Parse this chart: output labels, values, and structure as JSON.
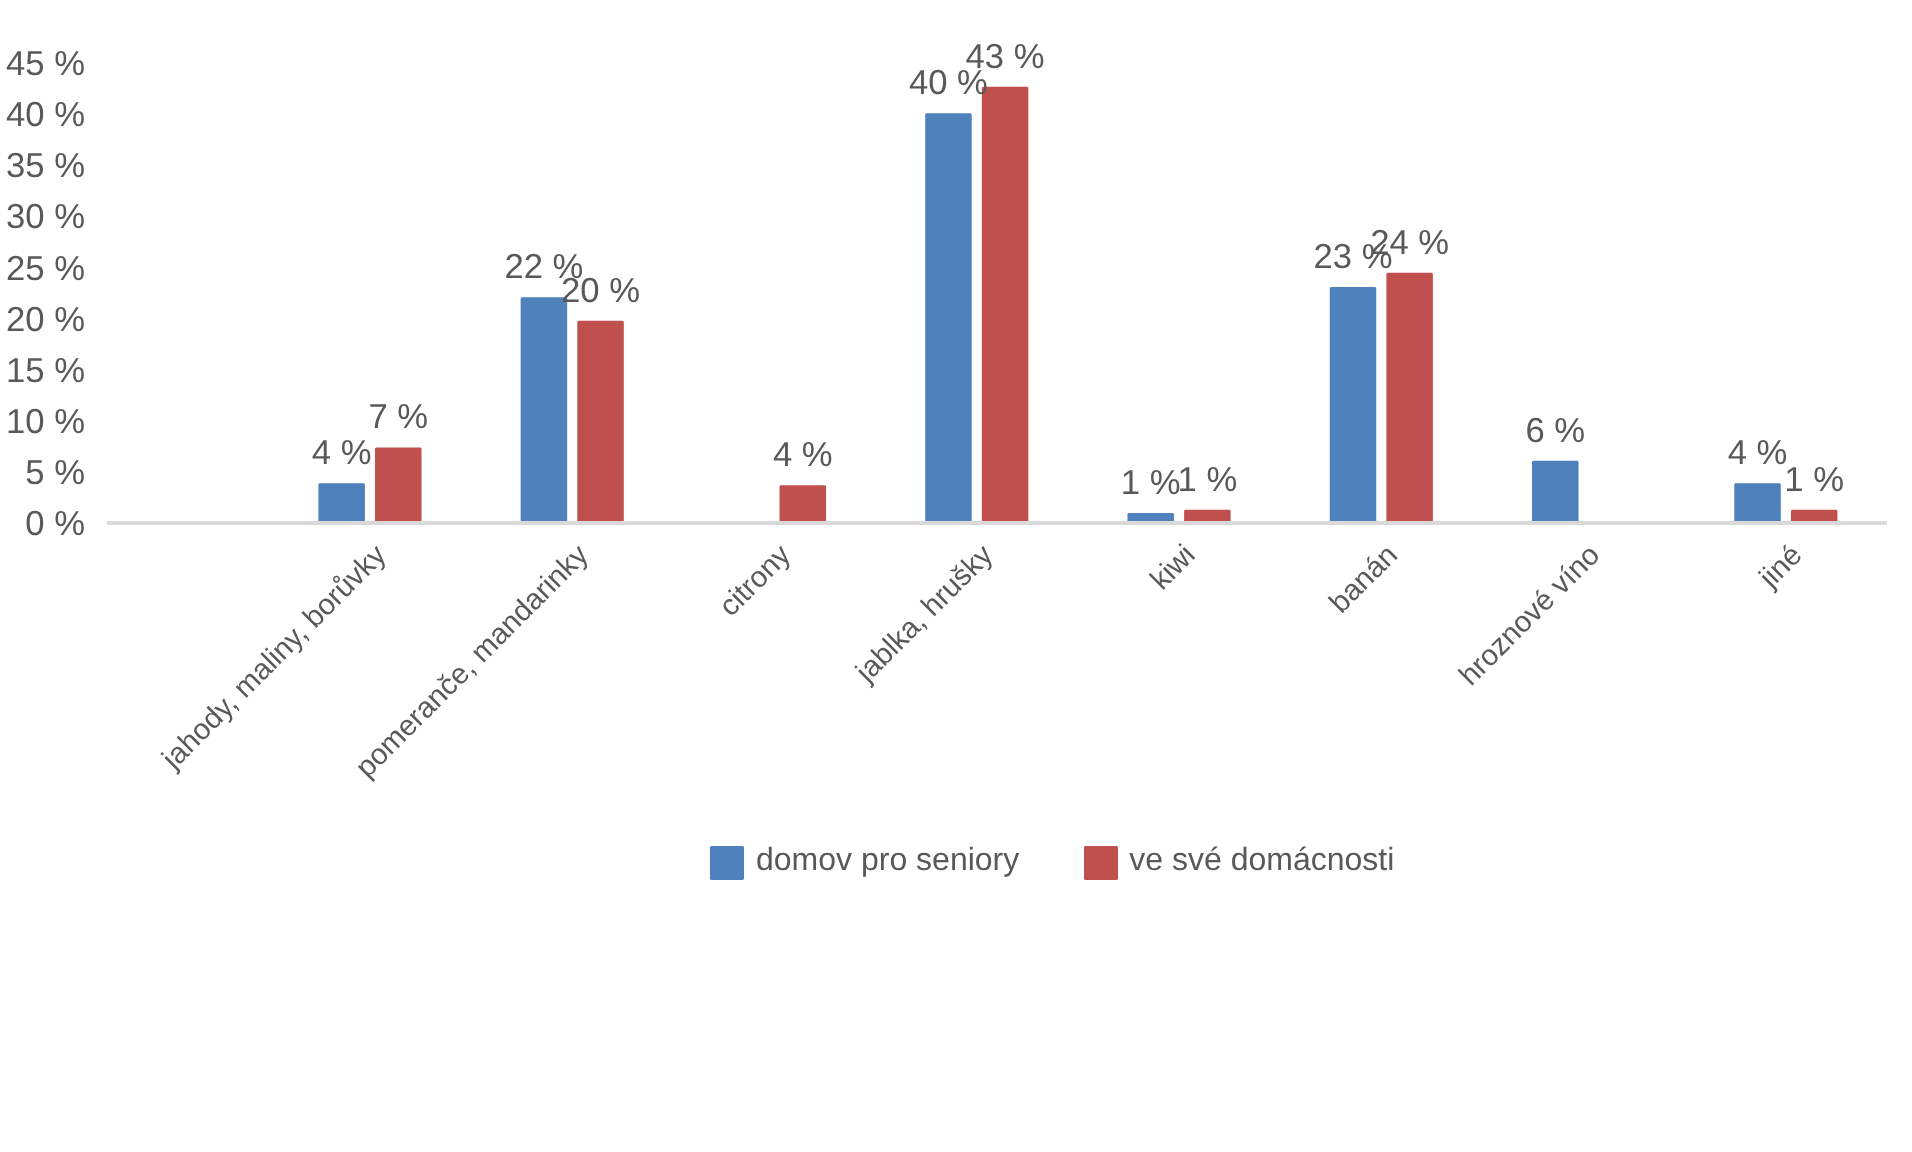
{
  "chart_data": {
    "type": "bar",
    "categories": [
      "jahody, maliny, borůvky",
      "pomeranče, mandarinky",
      "citrony",
      "jablka, hrušky",
      "kiwi",
      "banán",
      "hroznové víno",
      "jiné"
    ],
    "series": [
      {
        "name": "domov pro seniory",
        "color": "#4f81bd",
        "values": [
          3.8,
          22,
          null,
          40,
          0.9,
          23,
          6,
          3.8
        ],
        "value_labels": [
          "4 %",
          "22 %",
          null,
          "40 %",
          "1 %",
          "23 %",
          "6 %",
          "4 %"
        ]
      },
      {
        "name": "ve své domácnosti",
        "color": "#c0504d",
        "values": [
          7.3,
          19.7,
          3.6,
          42.6,
          1.2,
          24.4,
          null,
          1.2
        ],
        "value_labels": [
          "7 %",
          "20 %",
          "4 %",
          "43 %",
          "1 %",
          "24 %",
          null,
          "1 %"
        ]
      }
    ],
    "ylim": [
      0,
      45
    ],
    "yticks": [
      {
        "value": 0,
        "label": "0 %"
      },
      {
        "value": 5,
        "label": "5 %"
      },
      {
        "value": 10,
        "label": "10 %"
      },
      {
        "value": 15,
        "label": "15 %"
      },
      {
        "value": 20,
        "label": "20 %"
      },
      {
        "value": 25,
        "label": "25 %"
      },
      {
        "value": 30,
        "label": "30 %"
      },
      {
        "value": 35,
        "label": "35 %"
      },
      {
        "value": 40,
        "label": "40 %"
      },
      {
        "value": 45,
        "label": "45 %"
      }
    ],
    "grid": false,
    "legend": "bottom"
  }
}
